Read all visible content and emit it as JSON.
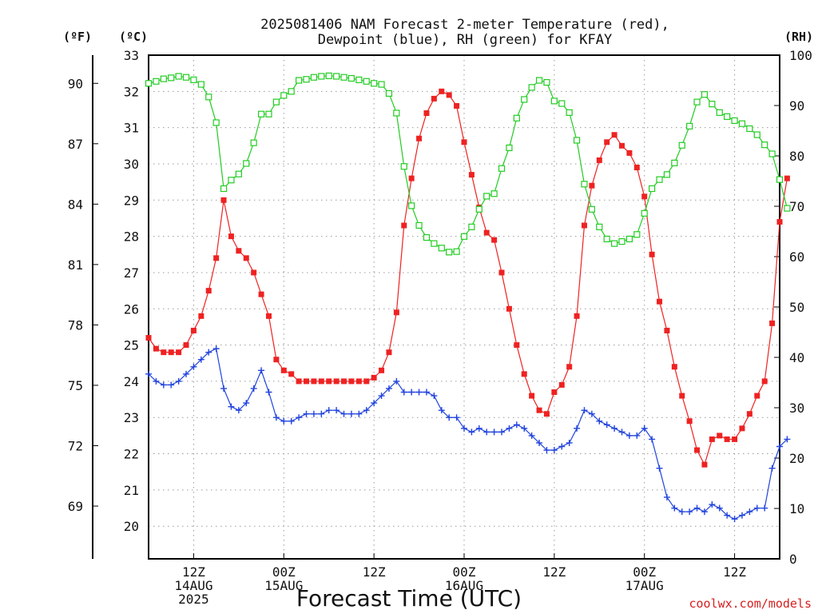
{
  "title_line1": "2025081406 NAM Forecast 2-meter Temperature (red),",
  "title_line2": "Dewpoint (blue), RH (green) for KFAY",
  "axis_units": {
    "f": "(ºF)",
    "c": "(ºC)",
    "rh": "(RH)"
  },
  "xlabel": "Forecast Time (UTC)",
  "credit": "coolwx.com/models",
  "colors": {
    "temperature": "#ee2222",
    "dewpoint": "#2244dd",
    "rh": "#22cc22",
    "grid": "#9a9a9a"
  },
  "chart_data": {
    "type": "line",
    "title": "2025081406 NAM Forecast 2-meter Temperature (red), Dewpoint (blue), RH (green) for KFAY",
    "xlabel": "Forecast Time (UTC)",
    "x_tick_labels": [
      {
        "x": 6,
        "lines": [
          "12Z",
          "14AUG",
          "2025"
        ]
      },
      {
        "x": 18,
        "lines": [
          "00Z",
          "15AUG"
        ]
      },
      {
        "x": 30,
        "lines": [
          "12Z"
        ]
      },
      {
        "x": 42,
        "lines": [
          "00Z",
          "16AUG"
        ]
      },
      {
        "x": 54,
        "lines": [
          "12Z"
        ]
      },
      {
        "x": 66,
        "lines": [
          "00Z",
          "17AUG"
        ]
      },
      {
        "x": 78,
        "lines": [
          "12Z"
        ]
      }
    ],
    "x_range_hours": [
      0,
      84
    ],
    "y_left_celsius": {
      "ylim": [
        19.1,
        33
      ],
      "ticks": [
        20,
        21,
        22,
        23,
        24,
        25,
        26,
        27,
        28,
        29,
        30,
        31,
        32,
        33
      ]
    },
    "y_left_fahrenheit": {
      "ticks": [
        69,
        72,
        75,
        78,
        81,
        84,
        87,
        90
      ]
    },
    "y_right_rh": {
      "ylim": [
        0,
        100
      ],
      "ticks": [
        0,
        10,
        20,
        30,
        40,
        50,
        60,
        70,
        80,
        90,
        100
      ]
    },
    "series": [
      {
        "name": "Temperature",
        "axis": "celsius",
        "marker": "filled-square",
        "values": [
          25.2,
          24.9,
          24.8,
          24.8,
          24.8,
          25.0,
          25.4,
          25.8,
          26.5,
          27.4,
          29.0,
          28.0,
          27.6,
          27.4,
          27.0,
          26.4,
          25.8,
          24.6,
          24.3,
          24.2,
          24.0,
          24.0,
          24.0,
          24.0,
          24.0,
          24.0,
          24.0,
          24.0,
          24.0,
          24.0,
          24.1,
          24.3,
          24.8,
          25.9,
          28.3,
          29.6,
          30.7,
          31.4,
          31.8,
          32.0,
          31.9,
          31.6,
          30.6,
          29.7,
          28.8,
          28.1,
          27.9,
          27.0,
          26.0,
          25.0,
          24.2,
          23.6,
          23.2,
          23.1,
          23.7,
          23.9,
          24.4,
          25.8,
          28.3,
          29.4,
          30.1,
          30.6,
          30.8,
          30.5,
          30.3,
          29.9,
          29.1,
          27.5,
          26.2,
          25.4,
          24.4,
          23.6,
          22.9,
          22.1,
          21.7,
          22.4,
          22.5,
          22.4,
          22.4,
          22.7,
          23.1,
          23.6,
          24.0,
          25.6,
          28.4,
          29.6
        ]
      },
      {
        "name": "Dewpoint",
        "axis": "celsius",
        "marker": "plus",
        "values": [
          24.2,
          24.0,
          23.9,
          23.9,
          24.0,
          24.2,
          24.4,
          24.6,
          24.8,
          24.9,
          23.8,
          23.3,
          23.2,
          23.4,
          23.8,
          24.3,
          23.7,
          23.0,
          22.9,
          22.9,
          23.0,
          23.1,
          23.1,
          23.1,
          23.2,
          23.2,
          23.1,
          23.1,
          23.1,
          23.2,
          23.4,
          23.6,
          23.8,
          24.0,
          23.7,
          23.7,
          23.7,
          23.7,
          23.6,
          23.2,
          23.0,
          23.0,
          22.7,
          22.6,
          22.7,
          22.6,
          22.6,
          22.6,
          22.7,
          22.8,
          22.7,
          22.5,
          22.3,
          22.1,
          22.1,
          22.2,
          22.3,
          22.7,
          23.2,
          23.1,
          22.9,
          22.8,
          22.7,
          22.6,
          22.5,
          22.5,
          22.7,
          22.4,
          21.6,
          20.8,
          20.5,
          20.4,
          20.4,
          20.5,
          20.4,
          20.6,
          20.5,
          20.3,
          20.2,
          20.3,
          20.4,
          20.5,
          20.5,
          21.6,
          22.2,
          22.4
        ]
      },
      {
        "name": "Relative Humidity",
        "axis": "rh",
        "marker": "open-square",
        "values": [
          94.4,
          94.8,
          95.3,
          95.5,
          95.8,
          95.6,
          95.1,
          94.2,
          91.7,
          86.6,
          73.5,
          75.2,
          76.4,
          78.5,
          82.6,
          88.3,
          88.3,
          90.7,
          92.0,
          92.8,
          95.0,
          95.2,
          95.6,
          95.8,
          95.9,
          95.8,
          95.6,
          95.4,
          95.1,
          94.8,
          94.4,
          94.2,
          92.4,
          88.5,
          77.9,
          70.1,
          66.2,
          63.8,
          62.6,
          61.7,
          60.9,
          61.0,
          64.0,
          65.9,
          69.4,
          72.0,
          72.5,
          77.5,
          81.6,
          87.5,
          91.2,
          93.6,
          95.0,
          94.6,
          90.9,
          90.4,
          88.6,
          83.1,
          74.4,
          69.4,
          65.9,
          63.5,
          62.6,
          63.0,
          63.5,
          64.4,
          68.6,
          73.5,
          75.3,
          76.3,
          78.6,
          82.1,
          85.9,
          90.7,
          92.2,
          90.3,
          88.6,
          87.8,
          87.0,
          86.4,
          85.4,
          84.2,
          82.2,
          80.4,
          75.3,
          69.6
        ]
      }
    ]
  }
}
